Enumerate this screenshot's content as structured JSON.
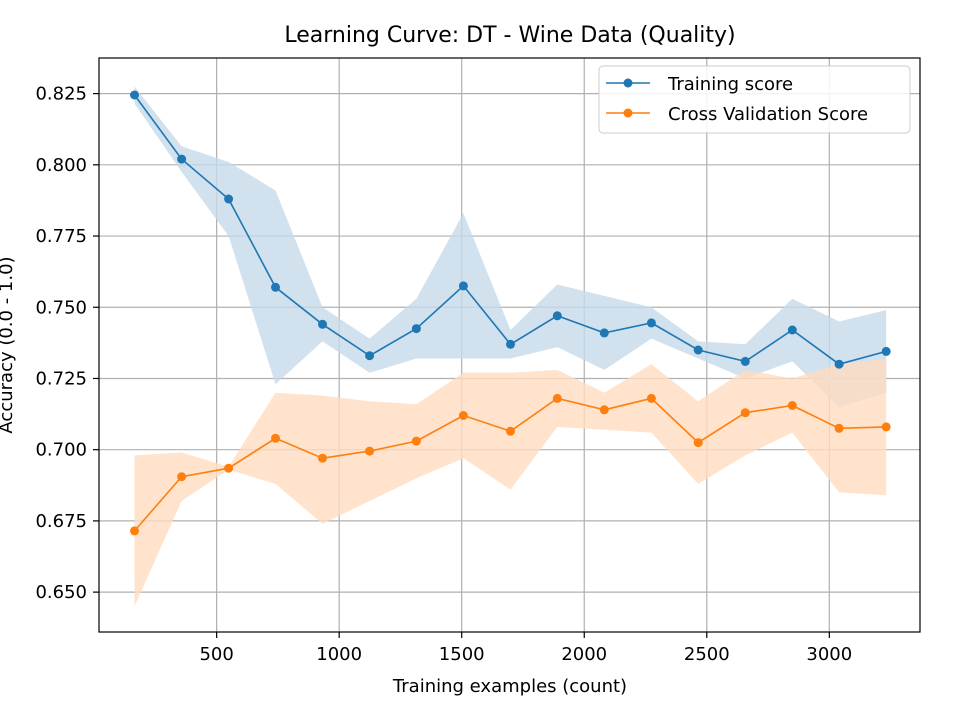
{
  "chart_data": {
    "type": "line",
    "title": "Learning Curve: DT - Wine Data (Quality)",
    "xlabel": "Training examples (count)",
    "ylabel": "Accuracy (0.0 - 1.0)",
    "xlim": [
      20,
      3370
    ],
    "ylim": [
      0.636,
      0.8375
    ],
    "x_ticks": [
      500,
      1000,
      1500,
      2000,
      2500,
      3000
    ],
    "y_ticks": [
      0.65,
      0.675,
      0.7,
      0.725,
      0.75,
      0.775,
      0.8,
      0.825
    ],
    "x_tick_labels": [
      "500",
      "1000",
      "1500",
      "2000",
      "2500",
      "3000"
    ],
    "y_tick_labels": [
      "0.650",
      "0.675",
      "0.700",
      "0.725",
      "0.750",
      "0.775",
      "0.800",
      "0.825"
    ],
    "grid": true,
    "legend_position": "top-right",
    "x": [
      165,
      357,
      549,
      740,
      932,
      1124,
      1315,
      1507,
      1699,
      1890,
      2082,
      2274,
      2465,
      2657,
      2849,
      3040,
      3232
    ],
    "series": [
      {
        "name": "Training score",
        "color": "#1f77b4",
        "band_color": "#c5daea",
        "values": [
          0.8245,
          0.802,
          0.788,
          0.757,
          0.744,
          0.733,
          0.7425,
          0.7575,
          0.737,
          0.747,
          0.741,
          0.7445,
          0.735,
          0.731,
          0.742,
          0.73,
          0.7345
        ],
        "band_upper": [
          0.8275,
          0.8065,
          0.801,
          0.791,
          0.75,
          0.739,
          0.753,
          0.783,
          0.742,
          0.758,
          0.754,
          0.75,
          0.738,
          0.737,
          0.753,
          0.745,
          0.749
        ],
        "band_lower": [
          0.8215,
          0.7975,
          0.775,
          0.723,
          0.738,
          0.727,
          0.732,
          0.732,
          0.732,
          0.736,
          0.728,
          0.739,
          0.732,
          0.725,
          0.731,
          0.715,
          0.72
        ]
      },
      {
        "name": "Cross Validation Score",
        "color": "#ff7f0e",
        "band_color": "#ffdcbf",
        "values": [
          0.6715,
          0.6905,
          0.6935,
          0.704,
          0.697,
          0.6995,
          0.703,
          0.712,
          0.7065,
          0.718,
          0.714,
          0.718,
          0.7025,
          0.713,
          0.7155,
          0.7075,
          0.708
        ],
        "band_upper": [
          0.698,
          0.699,
          0.694,
          0.72,
          0.719,
          0.717,
          0.716,
          0.727,
          0.727,
          0.728,
          0.72,
          0.73,
          0.717,
          0.728,
          0.725,
          0.73,
          0.732
        ],
        "band_lower": [
          0.645,
          0.682,
          0.693,
          0.688,
          0.674,
          0.682,
          0.69,
          0.697,
          0.686,
          0.708,
          0.707,
          0.706,
          0.688,
          0.698,
          0.706,
          0.685,
          0.684
        ]
      }
    ]
  }
}
